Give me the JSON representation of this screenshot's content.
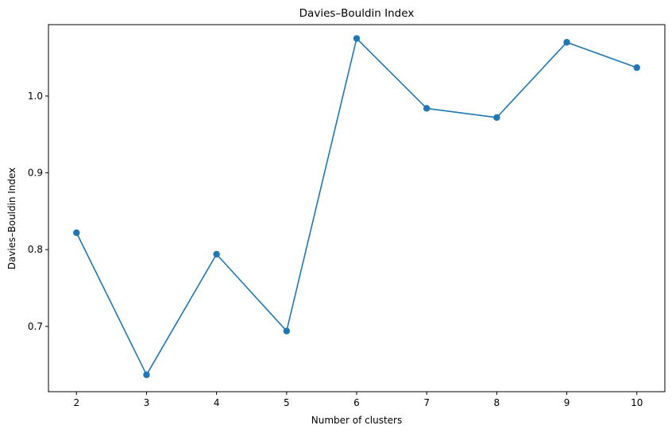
{
  "chart_data": {
    "type": "line",
    "title": "Davies–Bouldin Index",
    "xlabel": "Number of clusters",
    "ylabel": "Davies–Bouldin Index",
    "x": [
      2,
      3,
      4,
      5,
      6,
      7,
      8,
      9,
      10
    ],
    "series": [
      {
        "values": [
          0.822,
          0.637,
          0.794,
          0.694,
          1.075,
          0.984,
          0.972,
          1.07,
          1.037
        ],
        "color": "#1f77b4",
        "marker": "circle"
      }
    ],
    "xlim": [
      1.6,
      10.4
    ],
    "ylim": [
      0.615,
      1.093
    ],
    "xticks": [
      "2",
      "3",
      "4",
      "5",
      "6",
      "7",
      "8",
      "9",
      "10"
    ],
    "yticks": [
      "0.7",
      "0.8",
      "0.9",
      "1.0"
    ],
    "grid": false,
    "legend": "none"
  }
}
